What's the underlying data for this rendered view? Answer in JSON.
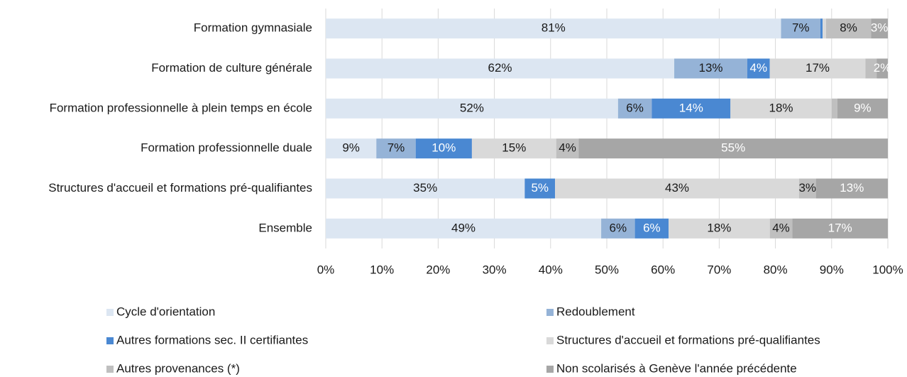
{
  "chart_data": {
    "type": "stacked_barh",
    "categories": [
      "Formation gymnasiale",
      "Formation de culture générale",
      "Formation professionnelle à plein temps en école",
      "Formation professionnelle duale",
      "Structures d'accueil et formations pré-qualifiantes",
      "Ensemble"
    ],
    "series": [
      {
        "name": "Cycle d'orientation",
        "color": "#dce6f2",
        "label_color": "#1a1a1a",
        "values": [
          81,
          62,
          52,
          9,
          35.4,
          49
        ],
        "value_labels": [
          "81%",
          "62%",
          "52%",
          "9%",
          "35%",
          "49%"
        ]
      },
      {
        "name": "Redoublement",
        "color": "#95b3d7",
        "label_color": "#1a1a1a",
        "values": [
          7,
          13,
          6,
          7,
          0,
          6
        ],
        "value_labels": [
          "7%",
          "13%",
          "6%",
          "7%",
          null,
          "6%"
        ]
      },
      {
        "name": "Autres formations sec. II certifiantes",
        "color": "#4a88d2",
        "label_color": "#ffffff",
        "values": [
          0.4,
          4,
          14,
          10,
          5.4,
          6
        ],
        "value_labels": [
          null,
          "4%",
          "14%",
          "10%",
          "5%",
          "6%"
        ]
      },
      {
        "name": "Structures d'accueil et formations pré-qualifiantes",
        "color": "#d9d9d9",
        "label_color": "#1a1a1a",
        "values": [
          0.6,
          17,
          18,
          15,
          43.4,
          18
        ],
        "value_labels": [
          null,
          "17%",
          "18%",
          "15%",
          "43%",
          "18%"
        ]
      },
      {
        "name": "Autres provenances (*)",
        "color": "#bfbfbf",
        "label_color": "#1a1a1a",
        "values": [
          8,
          2,
          1,
          4,
          3,
          4
        ],
        "value_labels": [
          "8%",
          null,
          null,
          "4%",
          "3%",
          "4%"
        ]
      },
      {
        "name": "Non scolarisés à Genève l'année précédente",
        "color": "#a6a6a6",
        "label_color": "#ffffff",
        "values": [
          3,
          2,
          9,
          55,
          12.8,
          17
        ],
        "value_labels": [
          "3%",
          "2%",
          "9%",
          "55%",
          "13%",
          "17%"
        ]
      }
    ],
    "xlim": [
      0,
      100
    ],
    "xticks": [
      {
        "value": 0,
        "label": "0%"
      },
      {
        "value": 10,
        "label": "10%"
      },
      {
        "value": 20,
        "label": "20%"
      },
      {
        "value": 30,
        "label": "30%"
      },
      {
        "value": 40,
        "label": "40%"
      },
      {
        "value": 50,
        "label": "50%"
      },
      {
        "value": 60,
        "label": "60%"
      },
      {
        "value": 70,
        "label": "70%"
      },
      {
        "value": 80,
        "label": "80%"
      },
      {
        "value": 90,
        "label": "90%"
      },
      {
        "value": 100,
        "label": "100%"
      }
    ],
    "grid": true
  }
}
